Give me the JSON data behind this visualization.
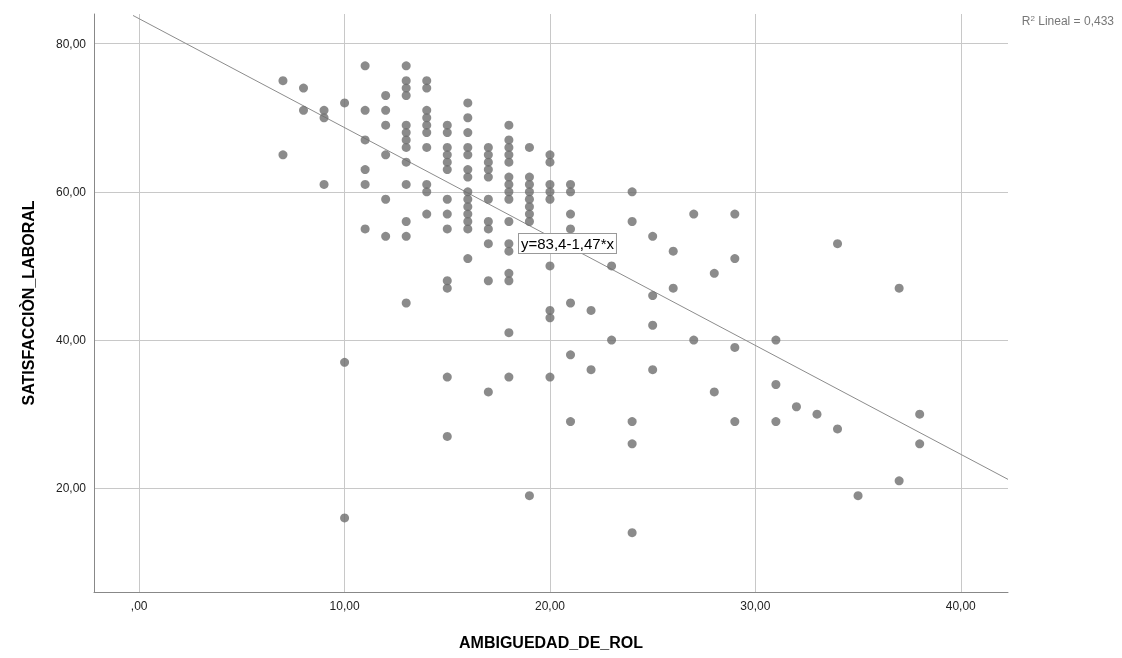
{
  "chart_data": {
    "type": "scatter",
    "xlabel": "AMBIGUEDAD_DE_ROL",
    "ylabel": "SATISFACCIÒN_LABORAL",
    "xlim": [
      -2.2,
      42.3
    ],
    "ylim": [
      6,
      84
    ],
    "xticks": [
      {
        "value": 0,
        "label": ",00"
      },
      {
        "value": 10,
        "label": "10,00"
      },
      {
        "value": 20,
        "label": "20,00"
      },
      {
        "value": 30,
        "label": "30,00"
      },
      {
        "value": 40,
        "label": "40,00"
      }
    ],
    "yticks": [
      {
        "value": 20,
        "label": "20,00"
      },
      {
        "value": 40,
        "label": "40,00"
      },
      {
        "value": 60,
        "label": "60,00"
      },
      {
        "value": 80,
        "label": "80,00"
      }
    ],
    "grid": true,
    "marker": "circle",
    "annotations": [
      "y=83,4-1,47*x",
      "R$^{2}$ Lineal = 0,433"
    ],
    "series": [
      {
        "color": "#6e6e6e",
        "x": [
          7,
          7,
          8,
          8,
          9,
          9,
          9,
          10,
          10,
          10,
          11,
          11,
          11,
          11,
          11,
          11,
          12,
          12,
          12,
          12,
          12,
          12,
          13,
          13,
          13,
          13,
          13,
          13,
          13,
          13,
          13,
          13,
          13,
          13,
          13,
          14,
          14,
          14,
          14,
          14,
          14,
          14,
          14,
          14,
          14,
          15,
          15,
          15,
          15,
          15,
          15,
          15,
          15,
          15,
          15,
          15,
          15,
          15,
          16,
          16,
          16,
          16,
          16,
          16,
          16,
          16,
          16,
          16,
          16,
          16,
          16,
          16,
          17,
          17,
          17,
          17,
          17,
          17,
          17,
          17,
          17,
          17,
          17,
          18,
          18,
          18,
          18,
          18,
          18,
          18,
          18,
          18,
          18,
          18,
          18,
          18,
          18,
          18,
          18,
          19,
          19,
          19,
          19,
          19,
          19,
          19,
          19,
          19,
          20,
          20,
          20,
          20,
          20,
          20,
          20,
          20,
          20,
          21,
          21,
          21,
          21,
          21,
          21,
          21,
          22,
          22,
          23,
          23,
          24,
          24,
          24,
          24,
          24,
          25,
          25,
          25,
          25,
          26,
          26,
          27,
          27,
          28,
          28,
          29,
          29,
          29,
          29,
          31,
          31,
          31,
          32,
          33,
          34,
          34,
          35,
          37,
          37,
          38,
          38
        ],
        "values": [
          75,
          65,
          74,
          71,
          71,
          70,
          61,
          72,
          37,
          16,
          77,
          71,
          67,
          63,
          61,
          55,
          73,
          71,
          69,
          65,
          59,
          54,
          77,
          75,
          74,
          73,
          69,
          68,
          67,
          66,
          64,
          61,
          56,
          54,
          45,
          75,
          74,
          71,
          70,
          69,
          68,
          66,
          61,
          60,
          57,
          69,
          68,
          66,
          65,
          64,
          63,
          59,
          57,
          55,
          48,
          47,
          35,
          27,
          72,
          70,
          68,
          66,
          65,
          63,
          62,
          60,
          59,
          58,
          57,
          56,
          55,
          51,
          66,
          65,
          64,
          63,
          62,
          59,
          56,
          55,
          53,
          48,
          33,
          69,
          67,
          66,
          65,
          64,
          62,
          61,
          60,
          59,
          56,
          53,
          52,
          49,
          48,
          41,
          35,
          66,
          62,
          61,
          60,
          59,
          58,
          57,
          56,
          19,
          65,
          64,
          61,
          60,
          59,
          50,
          44,
          43,
          35,
          61,
          60,
          57,
          55,
          45,
          38,
          29,
          44,
          36,
          50,
          40,
          60,
          56,
          29,
          26,
          14,
          54,
          46,
          42,
          36,
          52,
          47,
          57,
          40,
          49,
          33,
          57,
          51,
          39,
          29,
          40,
          34,
          29,
          31,
          30,
          53,
          28,
          19,
          47,
          21,
          30,
          26
        ]
      },
      {
        "type": "line",
        "color": "#8c8c8c",
        "marker": "none",
        "x": [
          -0.3,
          42.3
        ],
        "values": [
          83.8,
          21.2
        ]
      }
    ]
  }
}
